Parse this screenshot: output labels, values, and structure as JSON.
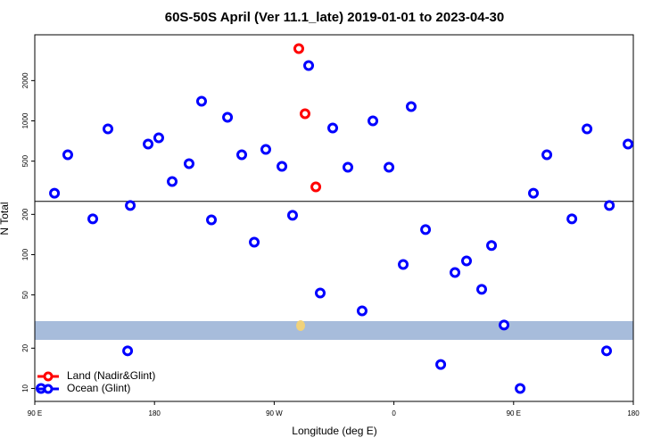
{
  "chart_data": {
    "type": "scatter",
    "title": "60S-50S April (Ver 11.1_late)   2019-01-01 to 2023-04-30",
    "x_label": "Longitude (deg E)",
    "y_label": "N Total",
    "xlim": [
      90,
      540
    ],
    "ylim": [
      8,
      4400
    ],
    "y_scale": "log",
    "xticks": [
      {
        "value": 90,
        "label": "90 E"
      },
      180,
      {
        "value": 270,
        "label": "90 W"
      },
      {
        "value": 360,
        "label": "0"
      },
      {
        "value": 450,
        "label": "90 E"
      },
      {
        "value": 540,
        "label": "180"
      }
    ],
    "yticks": [
      10,
      20,
      50,
      100,
      200,
      500,
      1000,
      2000
    ],
    "reference_line": 250,
    "legend": "bottom left",
    "series": [
      {
        "name": "Land (Nadir&Glint)",
        "color": "#ff0000",
        "x": [
          288.5,
          293.2,
          301.3
        ],
        "values": [
          3467,
          1130,
          321
        ]
      },
      {
        "name": "Ocean (Glint)",
        "color": "#0000ff",
        "x": [
          94.7,
          104.8,
          114.8,
          133.6,
          145,
          161.8,
          159.8,
          175.2,
          183.2,
          193.3,
          206,
          215.4,
          222.8,
          234.9,
          245.6,
          255,
          263.7,
          275.8,
          283.8,
          295.9,
          304.6,
          314,
          325.4,
          336.1,
          344.2,
          356.3,
          367,
          373,
          383.8,
          395.2,
          405.9,
          414.6,
          426,
          433.4,
          442.8,
          454.9,
          464.9,
          475,
          493.8,
          505.2,
          522,
          519.9,
          536
        ],
        "values": [
          10,
          288,
          558,
          185,
          871,
          233,
          19.1,
          671,
          747,
          352,
          479,
          1402,
          182,
          1064,
          558,
          124,
          612,
          457,
          197,
          2590,
          51.7,
          885,
          450,
          38,
          1000,
          450,
          84.5,
          1279,
          154,
          15.1,
          73.6,
          89.8,
          55,
          117,
          29.8,
          10,
          288,
          558,
          185,
          871,
          233,
          19.1,
          671
        ]
      }
    ]
  }
}
